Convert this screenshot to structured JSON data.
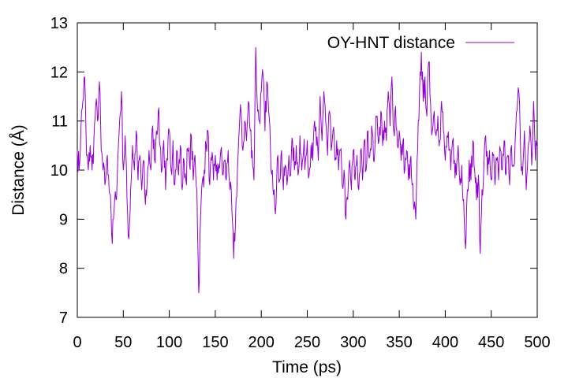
{
  "chart_data": {
    "type": "line",
    "title": "",
    "xlabel": "Time (ps)",
    "ylabel": "Distance (Å)",
    "xlim": [
      0,
      500
    ],
    "ylim": [
      7,
      13
    ],
    "xticks": [
      0,
      50,
      100,
      150,
      200,
      250,
      300,
      350,
      400,
      450,
      500
    ],
    "yticks": [
      7,
      8,
      9,
      10,
      11,
      12,
      13
    ],
    "grid": false,
    "legend_position": "top-right",
    "series": [
      {
        "name": "OY-HNT distance",
        "color": "#9400d3",
        "points": [
          [
            0,
            10.4
          ],
          [
            2,
            10.0
          ],
          [
            4,
            10.9
          ],
          [
            6,
            11.4
          ],
          [
            8,
            11.9
          ],
          [
            10,
            10.3
          ],
          [
            12,
            10.0
          ],
          [
            14,
            10.5
          ],
          [
            16,
            10.0
          ],
          [
            18,
            10.6
          ],
          [
            20,
            11.3
          ],
          [
            22,
            11.0
          ],
          [
            24,
            11.8
          ],
          [
            26,
            10.4
          ],
          [
            28,
            10.0
          ],
          [
            30,
            9.7
          ],
          [
            32,
            10.2
          ],
          [
            34,
            9.9
          ],
          [
            36,
            9.5
          ],
          [
            38,
            8.5
          ],
          [
            40,
            9.2
          ],
          [
            42,
            9.4
          ],
          [
            44,
            10.2
          ],
          [
            46,
            11.0
          ],
          [
            48,
            11.6
          ],
          [
            50,
            10.0
          ],
          [
            52,
            10.7
          ],
          [
            54,
            9.4
          ],
          [
            56,
            8.6
          ],
          [
            58,
            9.6
          ],
          [
            60,
            10.5
          ],
          [
            62,
            10.0
          ],
          [
            64,
            10.8
          ],
          [
            66,
            9.8
          ],
          [
            68,
            10.3
          ],
          [
            70,
            9.6
          ],
          [
            72,
            10.2
          ],
          [
            74,
            9.3
          ],
          [
            76,
            9.8
          ],
          [
            78,
            10.4
          ],
          [
            80,
            10.0
          ],
          [
            82,
            10.9
          ],
          [
            84,
            10.2
          ],
          [
            86,
            10.8
          ],
          [
            88,
            11.2
          ],
          [
            90,
            10.5
          ],
          [
            92,
            10.0
          ],
          [
            94,
            10.6
          ],
          [
            96,
            9.6
          ],
          [
            98,
            10.2
          ],
          [
            100,
            10.8
          ],
          [
            102,
            10.0
          ],
          [
            104,
            10.6
          ],
          [
            106,
            9.7
          ],
          [
            108,
            10.4
          ],
          [
            110,
            9.9
          ],
          [
            112,
            10.5
          ],
          [
            114,
            9.6
          ],
          [
            116,
            10.2
          ],
          [
            118,
            9.8
          ],
          [
            120,
            10.4
          ],
          [
            122,
            10.1
          ],
          [
            124,
            10.7
          ],
          [
            126,
            9.8
          ],
          [
            128,
            10.3
          ],
          [
            130,
            9.6
          ],
          [
            132,
            7.5
          ],
          [
            134,
            9.0
          ],
          [
            136,
            9.8
          ],
          [
            138,
            10.0
          ],
          [
            140,
            10.5
          ],
          [
            142,
            10.8
          ],
          [
            144,
            9.7
          ],
          [
            146,
            10.2
          ],
          [
            148,
            9.8
          ],
          [
            150,
            10.3
          ],
          [
            152,
            9.8
          ],
          [
            154,
            10.1
          ],
          [
            156,
            10.4
          ],
          [
            158,
            9.9
          ],
          [
            160,
            10.2
          ],
          [
            162,
            9.8
          ],
          [
            164,
            10.4
          ],
          [
            166,
            9.6
          ],
          [
            168,
            9.2
          ],
          [
            170,
            8.2
          ],
          [
            172,
            9.0
          ],
          [
            174,
            10.0
          ],
          [
            176,
            10.8
          ],
          [
            178,
            11.2
          ],
          [
            180,
            10.4
          ],
          [
            182,
            11.0
          ],
          [
            184,
            10.6
          ],
          [
            186,
            11.4
          ],
          [
            188,
            10.8
          ],
          [
            190,
            10.4
          ],
          [
            192,
            9.8
          ],
          [
            194,
            12.5
          ],
          [
            196,
            11.2
          ],
          [
            198,
            11.0
          ],
          [
            200,
            11.6
          ],
          [
            202,
            11.9
          ],
          [
            204,
            10.8
          ],
          [
            206,
            11.8
          ],
          [
            208,
            11.2
          ],
          [
            210,
            10.4
          ],
          [
            212,
            10.0
          ],
          [
            214,
            9.6
          ],
          [
            216,
            9.3
          ],
          [
            218,
            10.3
          ],
          [
            220,
            9.8
          ],
          [
            222,
            10.4
          ],
          [
            224,
            9.6
          ],
          [
            226,
            10.1
          ],
          [
            228,
            9.7
          ],
          [
            230,
            10.3
          ],
          [
            232,
            9.9
          ],
          [
            234,
            10.6
          ],
          [
            236,
            10.0
          ],
          [
            238,
            10.5
          ],
          [
            240,
            9.9
          ],
          [
            242,
            10.7
          ],
          [
            244,
            10.0
          ],
          [
            246,
            10.4
          ],
          [
            248,
            10.2
          ],
          [
            250,
            10.6
          ],
          [
            252,
            9.9
          ],
          [
            254,
            10.5
          ],
          [
            256,
            10.2
          ],
          [
            258,
            11.0
          ],
          [
            260,
            10.5
          ],
          [
            262,
            10.2
          ],
          [
            264,
            11.5
          ],
          [
            266,
            10.6
          ],
          [
            268,
            11.6
          ],
          [
            270,
            11.0
          ],
          [
            272,
            10.3
          ],
          [
            274,
            11.2
          ],
          [
            276,
            10.4
          ],
          [
            278,
            10.8
          ],
          [
            280,
            10.2
          ],
          [
            282,
            10.6
          ],
          [
            284,
            10.0
          ],
          [
            286,
            10.4
          ],
          [
            288,
            9.7
          ],
          [
            290,
            10.0
          ],
          [
            292,
            9.0
          ],
          [
            294,
            9.4
          ],
          [
            296,
            10.2
          ],
          [
            298,
            9.6
          ],
          [
            300,
            10.4
          ],
          [
            302,
            9.8
          ],
          [
            304,
            10.3
          ],
          [
            306,
            9.6
          ],
          [
            308,
            10.4
          ],
          [
            310,
            9.8
          ],
          [
            312,
            10.6
          ],
          [
            314,
            10.0
          ],
          [
            316,
            10.8
          ],
          [
            318,
            10.3
          ],
          [
            320,
            10.9
          ],
          [
            322,
            10.2
          ],
          [
            324,
            10.7
          ],
          [
            326,
            11.1
          ],
          [
            328,
            10.6
          ],
          [
            330,
            11.2
          ],
          [
            332,
            10.5
          ],
          [
            334,
            11.0
          ],
          [
            336,
            10.6
          ],
          [
            338,
            11.6
          ],
          [
            340,
            10.9
          ],
          [
            342,
            11.9
          ],
          [
            344,
            10.8
          ],
          [
            346,
            11.3
          ],
          [
            348,
            10.5
          ],
          [
            350,
            10.8
          ],
          [
            352,
            10.2
          ],
          [
            354,
            10.6
          ],
          [
            356,
            10.0
          ],
          [
            358,
            10.4
          ],
          [
            360,
            9.8
          ],
          [
            362,
            10.2
          ],
          [
            364,
            9.7
          ],
          [
            366,
            9.2
          ],
          [
            368,
            9.0
          ],
          [
            370,
            10.4
          ],
          [
            372,
            11.6
          ],
          [
            374,
            12.4
          ],
          [
            376,
            11.4
          ],
          [
            378,
            11.9
          ],
          [
            380,
            11.1
          ],
          [
            382,
            12.2
          ],
          [
            384,
            11.4
          ],
          [
            386,
            10.8
          ],
          [
            388,
            11.2
          ],
          [
            390,
            10.7
          ],
          [
            392,
            11.1
          ],
          [
            394,
            10.6
          ],
          [
            396,
            11.4
          ],
          [
            398,
            10.8
          ],
          [
            400,
            10.2
          ],
          [
            402,
            10.7
          ],
          [
            404,
            10.4
          ],
          [
            406,
            10.0
          ],
          [
            408,
            10.6
          ],
          [
            410,
            10.2
          ],
          [
            412,
            9.9
          ],
          [
            414,
            10.5
          ],
          [
            416,
            9.7
          ],
          [
            418,
            10.1
          ],
          [
            420,
            9.4
          ],
          [
            422,
            8.4
          ],
          [
            424,
            9.6
          ],
          [
            426,
            10.2
          ],
          [
            428,
            9.8
          ],
          [
            430,
            10.6
          ],
          [
            432,
            10.0
          ],
          [
            434,
            9.4
          ],
          [
            436,
            9.9
          ],
          [
            438,
            8.3
          ],
          [
            440,
            9.6
          ],
          [
            442,
            10.1
          ],
          [
            444,
            10.7
          ],
          [
            446,
            9.9
          ],
          [
            448,
            10.4
          ],
          [
            450,
            9.8
          ],
          [
            452,
            10.3
          ],
          [
            454,
            9.7
          ],
          [
            456,
            10.2
          ],
          [
            458,
            9.8
          ],
          [
            460,
            10.4
          ],
          [
            462,
            10.0
          ],
          [
            464,
            10.6
          ],
          [
            466,
            9.9
          ],
          [
            468,
            10.3
          ],
          [
            470,
            9.7
          ],
          [
            472,
            10.5
          ],
          [
            474,
            10.1
          ],
          [
            476,
            10.6
          ],
          [
            478,
            11.2
          ],
          [
            480,
            11.6
          ],
          [
            482,
            10.3
          ],
          [
            484,
            9.9
          ],
          [
            486,
            10.8
          ],
          [
            488,
            9.6
          ],
          [
            490,
            10.4
          ],
          [
            492,
            10.9
          ],
          [
            494,
            10.1
          ],
          [
            496,
            11.4
          ],
          [
            498,
            10.2
          ],
          [
            500,
            10.6
          ]
        ]
      }
    ]
  }
}
